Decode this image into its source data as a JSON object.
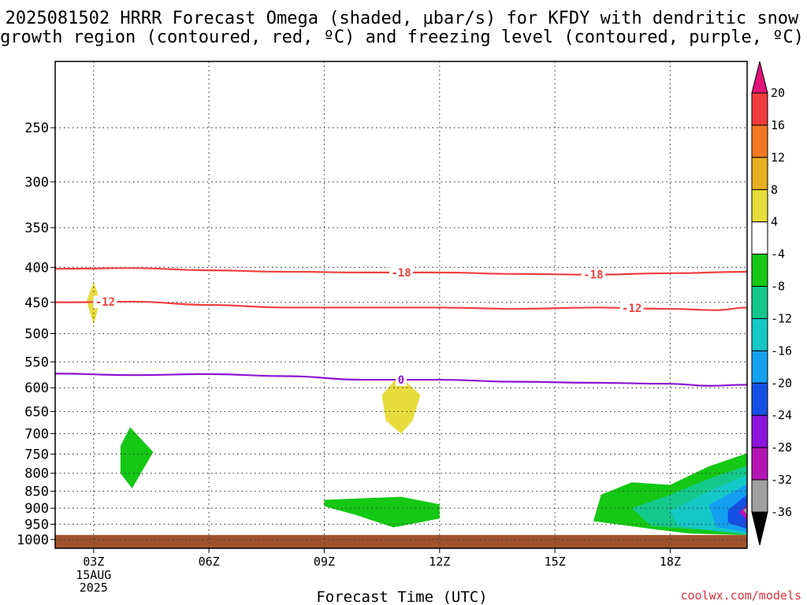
{
  "chart_data": {
    "type": "heatmap",
    "title": [
      "2025081502 HRRR Forecast Omega (shaded, μbar/s) for KFDY with dendritic snow",
      "growth region (contoured, red, ºC) and freezing level (contoured, purple, ºC)"
    ],
    "xlabel": "Forecast Time (UTC)",
    "ylabel": "",
    "x_range_hours": [
      2,
      20
    ],
    "x_ticks": [
      {
        "hour": 3,
        "label": "03Z",
        "sublabel": [
          "15AUG",
          "2025"
        ]
      },
      {
        "hour": 6,
        "label": "06Z"
      },
      {
        "hour": 9,
        "label": "09Z"
      },
      {
        "hour": 12,
        "label": "12Z"
      },
      {
        "hour": 15,
        "label": "15Z"
      },
      {
        "hour": 18,
        "label": "18Z"
      }
    ],
    "y_scale": "log-pressure (inverted)",
    "y_range_hPa": [
      1030,
      200
    ],
    "y_ticks": [
      250,
      300,
      350,
      400,
      450,
      500,
      550,
      600,
      650,
      700,
      750,
      800,
      850,
      900,
      950,
      1000
    ],
    "grid": true,
    "surface_band": {
      "from_hPa": 985,
      "color": "#a0522d"
    },
    "colorbar": {
      "levels": [
        20,
        16,
        12,
        8,
        4,
        -4,
        -8,
        -12,
        -16,
        -20,
        -24,
        -28,
        -32,
        -36
      ],
      "colors": [
        "#e0147a",
        "#f03c3c",
        "#f07820",
        "#e8b020",
        "#e8dc3c",
        "#ffffff",
        "#14c814",
        "#14c88c",
        "#14c8c8",
        "#14a0f0",
        "#1450e6",
        "#8c14dc",
        "#b414b4",
        "#a0a0a0",
        "#000000"
      ]
    },
    "contours": [
      {
        "label": "-18",
        "color": "#f04040",
        "points": [
          [
            2,
            402
          ],
          [
            4,
            401
          ],
          [
            6,
            404
          ],
          [
            8,
            406
          ],
          [
            10,
            407
          ],
          [
            12,
            407
          ],
          [
            14,
            409
          ],
          [
            16,
            410
          ],
          [
            18,
            408
          ],
          [
            20,
            406
          ]
        ],
        "label_at_hours": [
          11,
          16
        ]
      },
      {
        "label": "-12",
        "color": "#f04040",
        "points": [
          [
            2,
            450
          ],
          [
            4,
            449
          ],
          [
            6,
            454
          ],
          [
            8,
            458
          ],
          [
            10,
            458
          ],
          [
            12,
            458
          ],
          [
            14,
            460
          ],
          [
            16,
            458
          ],
          [
            18,
            460
          ],
          [
            19.2,
            462
          ],
          [
            20,
            458
          ]
        ],
        "label_at_hours": [
          3.3,
          17
        ]
      },
      {
        "label": "0",
        "color": "#8c14d0",
        "points": [
          [
            2,
            572
          ],
          [
            4,
            575
          ],
          [
            6,
            573
          ],
          [
            8,
            577
          ],
          [
            10,
            584
          ],
          [
            12,
            584
          ],
          [
            14,
            588
          ],
          [
            16,
            590
          ],
          [
            18,
            592
          ],
          [
            19,
            596
          ],
          [
            20,
            594
          ]
        ],
        "label_at_hours": [
          11
        ]
      }
    ],
    "omega_regions": [
      {
        "value_range": "4 to 8",
        "color": "#e8dc3c",
        "points": [
          [
            3,
            420
          ],
          [
            2.82,
            448
          ],
          [
            3,
            485
          ],
          [
            3.17,
            448
          ]
        ]
      },
      {
        "value_range": "4 to 8",
        "color": "#e8dc3c",
        "points": [
          [
            10.95,
            575
          ],
          [
            11.5,
            615
          ],
          [
            11.3,
            670
          ],
          [
            11.0,
            700
          ],
          [
            10.6,
            670
          ],
          [
            10.5,
            615
          ]
        ]
      },
      {
        "value_range": "-4 to -8",
        "color": "#14c814",
        "points": [
          [
            3.95,
            685
          ],
          [
            4.55,
            745
          ],
          [
            4.0,
            842
          ],
          [
            3.7,
            800
          ],
          [
            3.7,
            730
          ]
        ]
      },
      {
        "value_range": "-4 to -8",
        "color": "#14c814",
        "points": [
          [
            9.0,
            875
          ],
          [
            11.0,
            866
          ],
          [
            12.0,
            888
          ],
          [
            12.0,
            932
          ],
          [
            10.8,
            960
          ],
          [
            9.8,
            920
          ],
          [
            9.0,
            894
          ]
        ]
      },
      {
        "value_range": "-4 to -8",
        "color": "#14c814",
        "points": [
          [
            16.2,
            860
          ],
          [
            17,
            825
          ],
          [
            18,
            832
          ],
          [
            19,
            782
          ],
          [
            20,
            748
          ],
          [
            20,
            985
          ],
          [
            18.5,
            980
          ],
          [
            17.5,
            965
          ],
          [
            16.0,
            940
          ],
          [
            16.1,
            900
          ]
        ]
      },
      {
        "value_range": "-8 to -12",
        "color": "#14c88c",
        "points": [
          [
            17,
            900
          ],
          [
            18,
            860
          ],
          [
            19,
            815
          ],
          [
            20,
            780
          ],
          [
            20,
            985
          ],
          [
            19,
            970
          ],
          [
            17.5,
            955
          ]
        ]
      },
      {
        "value_range": "-12 to -16",
        "color": "#14c8c8",
        "points": [
          [
            18,
            910
          ],
          [
            19,
            850
          ],
          [
            20,
            805
          ],
          [
            20,
            980
          ],
          [
            19,
            968
          ],
          [
            18.2,
            955
          ]
        ]
      },
      {
        "value_range": "-16 to -20",
        "color": "#14a0f0",
        "points": [
          [
            19,
            890
          ],
          [
            20,
            830
          ],
          [
            20,
            975
          ],
          [
            19.2,
            960
          ]
        ]
      },
      {
        "value_range": "-20 to -24",
        "color": "#1450e6",
        "points": [
          [
            19.5,
            905
          ],
          [
            20,
            860
          ],
          [
            20,
            965
          ],
          [
            19.5,
            945
          ]
        ]
      },
      {
        "value_range": "-24 to -28",
        "color": "#8c14dc",
        "points": [
          [
            19.9,
            915
          ],
          [
            20,
            880
          ],
          [
            20,
            955
          ]
        ]
      },
      {
        "value_range": "-28 to -32",
        "color": "#b414b4",
        "points": [
          [
            19.78,
            912
          ],
          [
            20,
            893
          ],
          [
            20,
            935
          ]
        ]
      },
      {
        "value_range": "-32 to -36",
        "color": "#a0a0a0",
        "points": [
          [
            19.9,
            905
          ],
          [
            20,
            899
          ],
          [
            20,
            920
          ]
        ]
      }
    ],
    "watermark": "coolwx.com/models"
  }
}
